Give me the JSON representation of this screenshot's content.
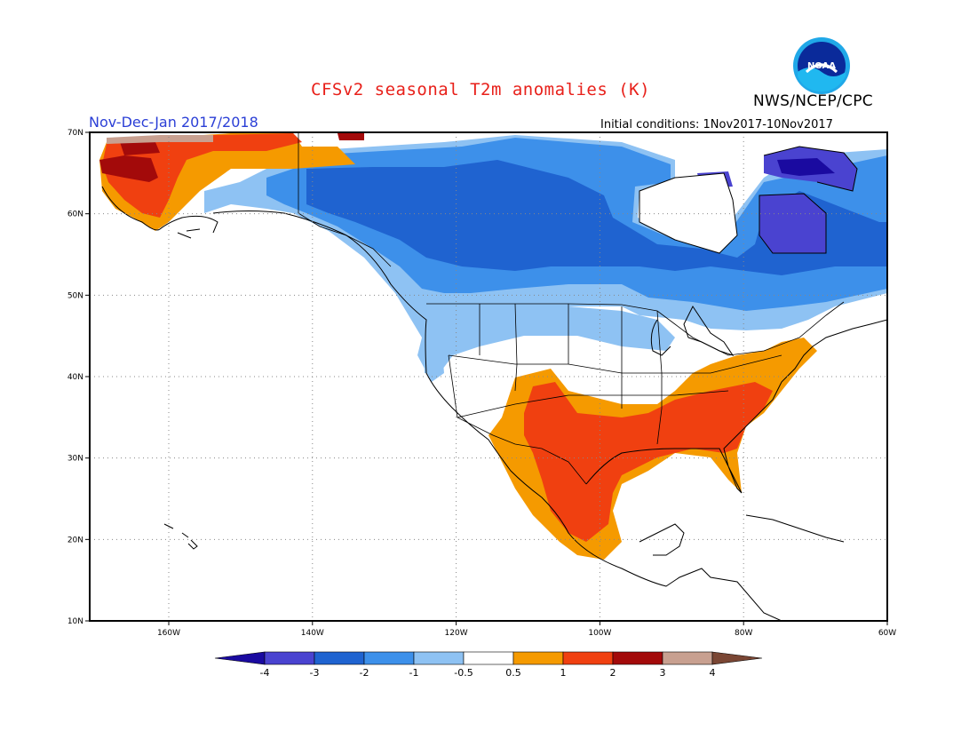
{
  "map": {
    "title": "CFSv2 seasonal T2m anomalies (K)",
    "agency": "NWS/NCEP/CPC",
    "period": "Nov-Dec-Jan 2017/2018",
    "initial_conditions": "Initial conditions: 1Nov2017-10Nov2017",
    "logo_text": "NOAA",
    "lon_ticks": [
      {
        "label": "160W",
        "lon": -160
      },
      {
        "label": "140W",
        "lon": -140
      },
      {
        "label": "120W",
        "lon": -120
      },
      {
        "label": "100W",
        "lon": -100
      },
      {
        "label": "80W",
        "lon": -80
      },
      {
        "label": "60W",
        "lon": -60
      }
    ],
    "lat_ticks": [
      {
        "label": "70N",
        "lat": 70
      },
      {
        "label": "60N",
        "lat": 60
      },
      {
        "label": "50N",
        "lat": 50
      },
      {
        "label": "40N",
        "lat": 40
      },
      {
        "label": "30N",
        "lat": 30
      },
      {
        "label": "20N",
        "lat": 20
      },
      {
        "label": "10N",
        "lat": 10
      }
    ],
    "extent": {
      "lon_min": -171,
      "lon_max": -60,
      "lat_min": 10,
      "lat_max": 70
    },
    "grid": "dotted at every 10 degrees",
    "colorbar": {
      "labels": [
        "-4",
        "-3",
        "-2",
        "-1",
        "-0.5",
        "0.5",
        "1",
        "2",
        "3",
        "4"
      ],
      "colors": [
        "#1a0aa0",
        "#4a43d0",
        "#1f63d0",
        "#3d90ea",
        "#8ec2f3",
        "#ffffff",
        "#f59a00",
        "#f04010",
        "#a30a0a",
        "#c8a090",
        "#7a4634"
      ]
    },
    "anomaly_regions": [
      {
        "name": "western Alaska",
        "level": "1 to 3",
        "color": "#f04010"
      },
      {
        "name": "northwest Alaska",
        "level": "2 to 3",
        "color": "#a30a0a"
      },
      {
        "name": "northern Alaska coast",
        "level": "3 to 4",
        "color": "#c8a090"
      },
      {
        "name": "Canada",
        "level": "-1 to -3",
        "color": "#1f63d0"
      },
      {
        "name": "Hudson Bay region",
        "level": "-2 to -4",
        "color": "#4a43d0"
      },
      {
        "name": "US northern tier",
        "level": "-0.5 to -1",
        "color": "#8ec2f3"
      },
      {
        "name": "US southern tier and Mexico",
        "level": "0.5 to 2",
        "color": "#f04010"
      },
      {
        "name": "US Southeast",
        "level": "1 to 2",
        "color": "#f04010"
      },
      {
        "name": "US Northeast",
        "level": "0.5 to 1",
        "color": "#f59a00"
      }
    ]
  }
}
